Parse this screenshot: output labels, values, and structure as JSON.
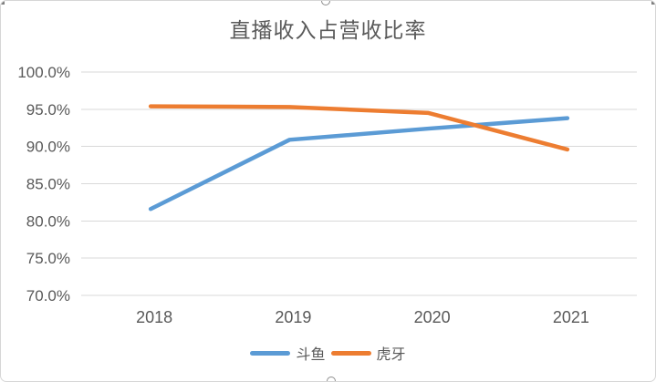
{
  "chart": {
    "title": "直播收入占营收比率"
  },
  "legend": {
    "items": [
      {
        "label": "斗鱼",
        "color": "#5B9BD5"
      },
      {
        "label": "虎牙",
        "color": "#ED7D31"
      }
    ]
  },
  "chart_data": {
    "type": "line",
    "title": "直播收入占营收比率",
    "categories": [
      "2018",
      "2019",
      "2020",
      "2021"
    ],
    "series": [
      {
        "name": "斗鱼",
        "color": "#5B9BD5",
        "values": [
          81.6,
          90.9,
          92.4,
          93.8
        ]
      },
      {
        "name": "虎牙",
        "color": "#ED7D31",
        "values": [
          95.4,
          95.3,
          94.5,
          89.6
        ]
      }
    ],
    "ylim": [
      70,
      100
    ],
    "ytick_step": 5,
    "yticklabels": [
      "100.0%",
      "95.0%",
      "90.0%",
      "85.0%",
      "80.0%",
      "75.0%",
      "70.0%"
    ],
    "grid": true,
    "legend_position": "bottom",
    "gridline_color": "#D9D9D9",
    "axis_label_color": "#595959"
  }
}
